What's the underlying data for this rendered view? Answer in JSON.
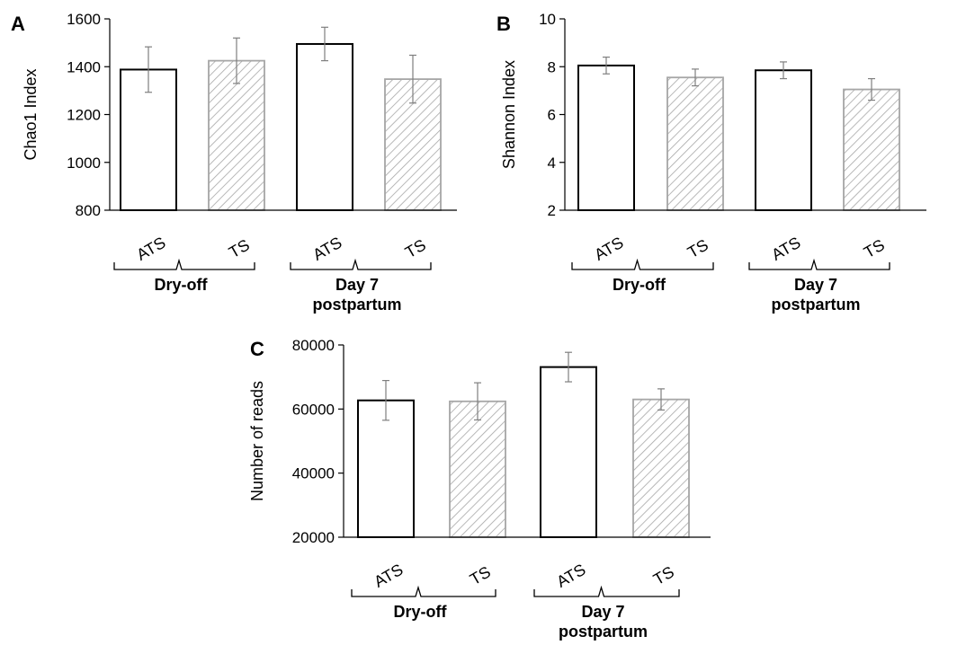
{
  "chart_data": [
    {
      "type": "bar",
      "panel": "A",
      "ylabel": "Chao1 Index",
      "ylim": [
        800,
        1600
      ],
      "yticks": [
        "800",
        "1000",
        "1200",
        "1400",
        "1600"
      ],
      "categories": [
        "ATS",
        "TS",
        "ATS",
        "TS"
      ],
      "values": [
        1388,
        1425,
        1495,
        1348
      ],
      "errors": [
        95,
        95,
        70,
        100
      ],
      "groups": [
        {
          "lines": [
            "Dry-off"
          ]
        },
        {
          "lines": [
            "Day 7",
            "postpartum"
          ]
        }
      ],
      "styles": [
        "open",
        "hatched",
        "open",
        "hatched"
      ],
      "grid": false
    },
    {
      "type": "bar",
      "panel": "B",
      "ylabel": "Shannon Index",
      "ylim": [
        2,
        10
      ],
      "yticks": [
        "2",
        "4",
        "6",
        "8",
        "10"
      ],
      "categories": [
        "ATS",
        "TS",
        "ATS",
        "TS"
      ],
      "values": [
        8.05,
        7.55,
        7.85,
        7.05
      ],
      "errors": [
        0.35,
        0.35,
        0.35,
        0.45
      ],
      "groups": [
        {
          "lines": [
            "Dry-off"
          ]
        },
        {
          "lines": [
            "Day 7",
            "postpartum"
          ]
        }
      ],
      "styles": [
        "open",
        "hatched",
        "open",
        "hatched"
      ],
      "grid": false
    },
    {
      "type": "bar",
      "panel": "C",
      "ylabel": "Number of reads",
      "ylim": [
        20000,
        80000
      ],
      "yticks": [
        "20000",
        "40000",
        "60000",
        "80000"
      ],
      "categories": [
        "ATS",
        "TS",
        "ATS",
        "TS"
      ],
      "values": [
        62700,
        62400,
        73100,
        63000
      ],
      "errors": [
        6200,
        5800,
        4600,
        3300
      ],
      "groups": [
        {
          "lines": [
            "Dry-off"
          ]
        },
        {
          "lines": [
            "Day 7",
            "postpartum"
          ]
        }
      ],
      "styles": [
        "open",
        "hatched",
        "open",
        "hatched"
      ],
      "grid": false
    }
  ],
  "colors": {
    "open_bar_stroke": "#000000",
    "hatched_bar_stroke": "#a6a6a6",
    "hatch_line": "#a6a6a6",
    "axis": "#000000",
    "error_bar": "#7f7f7f"
  }
}
